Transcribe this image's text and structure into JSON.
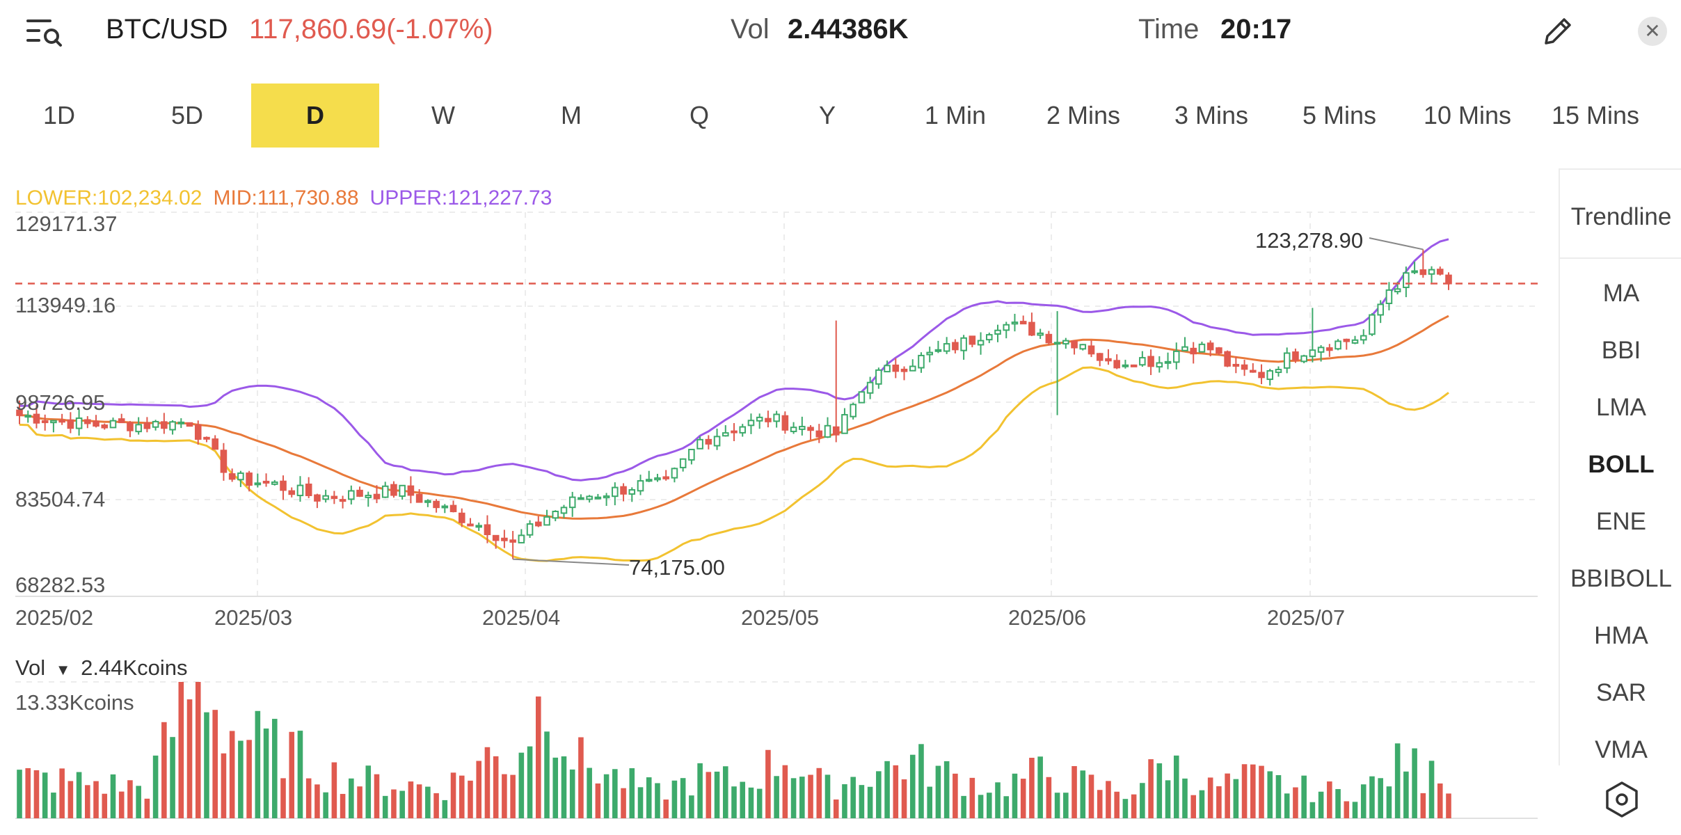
{
  "header": {
    "symbol": "BTC/USD",
    "price_change": "117,860.69(-1.07%)",
    "vol_label": "Vol",
    "vol_value": "2.44386K",
    "time_label": "Time",
    "time_value": "20:17",
    "close_label": "✕"
  },
  "periods": [
    {
      "label": "1D",
      "active": false
    },
    {
      "label": "5D",
      "active": false
    },
    {
      "label": "D",
      "active": true
    },
    {
      "label": "W",
      "active": false
    },
    {
      "label": "M",
      "active": false
    },
    {
      "label": "Q",
      "active": false
    },
    {
      "label": "Y",
      "active": false
    },
    {
      "label": "1 Min",
      "active": false
    },
    {
      "label": "2 Mins",
      "active": false
    },
    {
      "label": "3 Mins",
      "active": false
    },
    {
      "label": "5 Mins",
      "active": false
    },
    {
      "label": "10 Mins",
      "active": false
    },
    {
      "label": "15 Mins",
      "active": false
    }
  ],
  "indicator_legend": {
    "lower": "LOWER:102,234.02",
    "mid": "MID:111,730.88",
    "upper": "UPPER:121,227.73"
  },
  "colors": {
    "up": "#3daa6b",
    "down": "#e05a4f",
    "lower": "#f2c230",
    "mid": "#e8793a",
    "upper": "#9b59e8",
    "active_period": "#f5dd4c"
  },
  "price_axis": {
    "labels": [
      "129171.37",
      "113949.16",
      "98726.95",
      "83504.74",
      "68282.53"
    ]
  },
  "date_axis": {
    "labels": [
      "2025/02",
      "2025/03",
      "2025/04",
      "2025/05",
      "2025/06",
      "2025/07"
    ]
  },
  "annotations": {
    "high": "123,278.90",
    "low": "74,175.00"
  },
  "volume": {
    "label": "Vol",
    "current": "2.44Kcoins",
    "max_label": "13.33Kcoins"
  },
  "sidebar": {
    "items": [
      "Trendline",
      "MA",
      "BBI",
      "LMA",
      "BOLL",
      "ENE",
      "BBIBOLL",
      "HMA",
      "SAR",
      "VMA"
    ],
    "active": "BOLL"
  },
  "chart_data": {
    "type": "candlestick",
    "symbol": "BTC/USD",
    "interval": "D",
    "ylim": [
      68282.53,
      129171.37
    ],
    "current_price": 117860.69,
    "high": 123278.9,
    "low": 74175.0,
    "indicators": {
      "BOLL": {
        "lower": 102234.02,
        "mid": 111730.88,
        "upper": 121227.73
      }
    },
    "close_anchors": [
      [
        0,
        97000
      ],
      [
        8,
        95500
      ],
      [
        15,
        95500
      ],
      [
        20,
        96000
      ],
      [
        25,
        87000
      ],
      [
        30,
        86000
      ],
      [
        35,
        84000
      ],
      [
        40,
        84500
      ],
      [
        45,
        85000
      ],
      [
        50,
        82000
      ],
      [
        55,
        79000
      ],
      [
        58,
        76500
      ],
      [
        62,
        81000
      ],
      [
        66,
        84000
      ],
      [
        70,
        85000
      ],
      [
        73,
        86000
      ],
      [
        76,
        86000
      ],
      [
        80,
        93000
      ],
      [
        84,
        95000
      ],
      [
        88,
        96500
      ],
      [
        92,
        95000
      ],
      [
        96,
        94000
      ],
      [
        100,
        103000
      ],
      [
        104,
        105000
      ],
      [
        108,
        107000
      ],
      [
        112,
        109000
      ],
      [
        115,
        111500
      ],
      [
        119,
        110500
      ],
      [
        122,
        109000
      ],
      [
        125,
        108500
      ],
      [
        128,
        105000
      ],
      [
        131,
        106000
      ],
      [
        134,
        105500
      ],
      [
        137,
        108000
      ],
      [
        140,
        107500
      ],
      [
        143,
        104000
      ],
      [
        146,
        103500
      ],
      [
        149,
        106000
      ],
      [
        152,
        108000
      ],
      [
        155,
        108500
      ],
      [
        158,
        109500
      ],
      [
        161,
        117000
      ],
      [
        164,
        119500
      ],
      [
        167,
        119000
      ],
      [
        168,
        117860
      ]
    ],
    "volume_anchors": [
      [
        0,
        4.0
      ],
      [
        8,
        3.5
      ],
      [
        15,
        3.0
      ],
      [
        20,
        12.5
      ],
      [
        22,
        13.3
      ],
      [
        24,
        9.0
      ],
      [
        28,
        7.5
      ],
      [
        32,
        6.5
      ],
      [
        36,
        4.5
      ],
      [
        42,
        3.5
      ],
      [
        50,
        3.0
      ],
      [
        55,
        6.0
      ],
      [
        58,
        5.5
      ],
      [
        62,
        12.5
      ],
      [
        65,
        6.0
      ],
      [
        70,
        4.0
      ],
      [
        75,
        2.5
      ],
      [
        80,
        4.0
      ],
      [
        85,
        3.5
      ],
      [
        90,
        6.0
      ],
      [
        95,
        3.0
      ],
      [
        100,
        4.5
      ],
      [
        105,
        5.5
      ],
      [
        110,
        4.0
      ],
      [
        115,
        3.0
      ],
      [
        120,
        4.5
      ],
      [
        125,
        3.5
      ],
      [
        130,
        2.5
      ],
      [
        135,
        5.5
      ],
      [
        140,
        3.0
      ],
      [
        145,
        4.0
      ],
      [
        150,
        3.0
      ],
      [
        155,
        2.5
      ],
      [
        160,
        3.5
      ],
      [
        163,
        6.0
      ],
      [
        165,
        4.0
      ],
      [
        166,
        7.5
      ],
      [
        168,
        2.4
      ]
    ]
  }
}
